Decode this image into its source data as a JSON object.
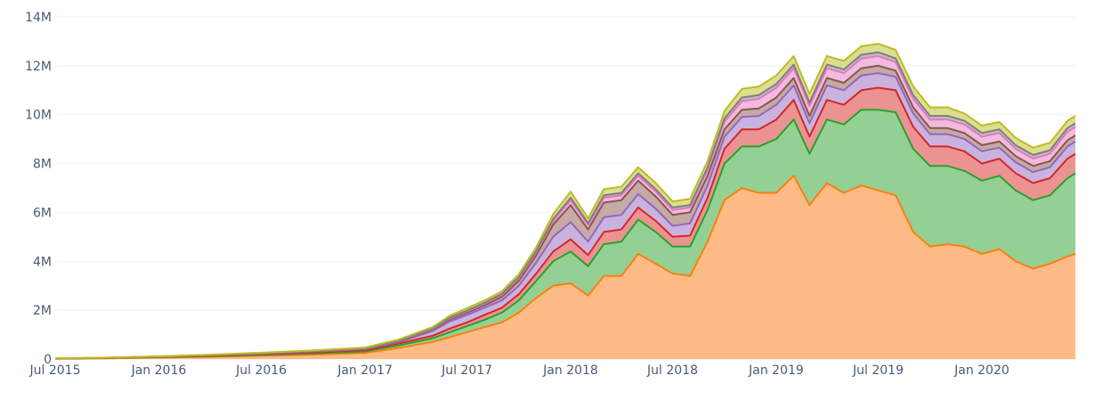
{
  "chart_data": {
    "type": "area",
    "stacked": true,
    "title": "",
    "xlabel": "",
    "ylabel": "",
    "grid": true,
    "legend": "none",
    "ylim": [
      0,
      14400000
    ],
    "xlim": [
      "2015-07-01",
      "2020-06-15"
    ],
    "y_ticks": [
      {
        "value": 0,
        "label": "0"
      },
      {
        "value": 2000000,
        "label": "2M"
      },
      {
        "value": 4000000,
        "label": "4M"
      },
      {
        "value": 6000000,
        "label": "6M"
      },
      {
        "value": 8000000,
        "label": "8M"
      },
      {
        "value": 10000000,
        "label": "10M"
      },
      {
        "value": 12000000,
        "label": "12M"
      },
      {
        "value": 14000000,
        "label": "14M"
      }
    ],
    "x_ticks": [
      {
        "value": "2015-07-01",
        "label": "Jul 2015"
      },
      {
        "value": "2016-01-01",
        "label": "Jan 2016"
      },
      {
        "value": "2016-07-01",
        "label": "Jul 2016"
      },
      {
        "value": "2017-01-01",
        "label": "Jan 2017"
      },
      {
        "value": "2017-07-01",
        "label": "Jul 2017"
      },
      {
        "value": "2018-01-01",
        "label": "Jan 2018"
      },
      {
        "value": "2018-07-01",
        "label": "Jul 2018"
      },
      {
        "value": "2019-01-01",
        "label": "Jan 2019"
      },
      {
        "value": "2019-07-01",
        "label": "Jul 2019"
      },
      {
        "value": "2020-01-01",
        "label": "Jan 2020"
      }
    ],
    "x": [
      "2015-07-01",
      "2015-10-01",
      "2016-01-01",
      "2016-04-01",
      "2016-07-01",
      "2016-10-01",
      "2017-01-01",
      "2017-03-01",
      "2017-05-01",
      "2017-06-01",
      "2017-07-01",
      "2017-08-01",
      "2017-09-01",
      "2017-10-01",
      "2017-11-01",
      "2017-12-01",
      "2018-01-01",
      "2018-02-01",
      "2018-03-01",
      "2018-04-01",
      "2018-05-01",
      "2018-06-01",
      "2018-07-01",
      "2018-08-01",
      "2018-09-01",
      "2018-10-01",
      "2018-11-01",
      "2018-12-01",
      "2019-01-01",
      "2019-02-01",
      "2019-03-01",
      "2019-04-01",
      "2019-05-01",
      "2019-06-01",
      "2019-07-01",
      "2019-08-01",
      "2019-09-01",
      "2019-10-01",
      "2019-11-01",
      "2019-12-01",
      "2020-01-01",
      "2020-02-01",
      "2020-03-01",
      "2020-04-01",
      "2020-05-01",
      "2020-06-01",
      "2020-06-15"
    ],
    "series": [
      {
        "color": "#ff7f0e",
        "fill": "#ffbb85",
        "values": [
          10000,
          30000,
          60000,
          90000,
          130000,
          180000,
          250000,
          450000,
          700000,
          900000,
          1100000,
          1300000,
          1500000,
          1900000,
          2500000,
          3000000,
          3100000,
          2600000,
          3400000,
          3400000,
          4300000,
          3900000,
          3500000,
          3400000,
          4800000,
          6500000,
          7000000,
          6800000,
          6800000,
          7500000,
          6300000,
          7200000,
          6800000,
          7100000,
          6900000,
          6700000,
          5200000,
          4600000,
          4700000,
          4600000,
          4300000,
          4500000,
          4000000,
          3700000,
          3900000,
          4200000,
          4300000
        ]
      },
      {
        "color": "#2ca02c",
        "fill": "#94d094",
        "values": [
          5000,
          10000,
          20000,
          30000,
          40000,
          50000,
          60000,
          100000,
          150000,
          200000,
          250000,
          300000,
          400000,
          500000,
          700000,
          1000000,
          1300000,
          1200000,
          1300000,
          1400000,
          1400000,
          1300000,
          1100000,
          1200000,
          1300000,
          1500000,
          1700000,
          1900000,
          2200000,
          2300000,
          2100000,
          2600000,
          2800000,
          3100000,
          3300000,
          3400000,
          3400000,
          3300000,
          3200000,
          3100000,
          3000000,
          3000000,
          2900000,
          2800000,
          2800000,
          3200000,
          3300000
        ]
      },
      {
        "color": "#d62728",
        "fill": "#eb9393",
        "values": [
          2000,
          5000,
          10000,
          20000,
          30000,
          40000,
          50000,
          80000,
          100000,
          150000,
          150000,
          200000,
          200000,
          250000,
          300000,
          400000,
          500000,
          450000,
          500000,
          500000,
          500000,
          450000,
          400000,
          450000,
          500000,
          600000,
          700000,
          700000,
          800000,
          800000,
          700000,
          800000,
          800000,
          800000,
          900000,
          900000,
          900000,
          800000,
          800000,
          800000,
          700000,
          700000,
          700000,
          700000,
          700000,
          800000,
          800000
        ]
      },
      {
        "color": "#9467bd",
        "fill": "#c9b3de",
        "values": [
          2000,
          5000,
          8000,
          15000,
          20000,
          30000,
          40000,
          60000,
          200000,
          300000,
          300000,
          300000,
          300000,
          350000,
          450000,
          600000,
          700000,
          550000,
          600000,
          600000,
          550000,
          500000,
          450000,
          500000,
          500000,
          500000,
          500000,
          550000,
          600000,
          600000,
          550000,
          600000,
          600000,
          600000,
          600000,
          550000,
          550000,
          500000,
          500000,
          500000,
          500000,
          450000,
          450000,
          450000,
          450000,
          500000,
          500000
        ]
      },
      {
        "color": "#8c564b",
        "fill": "#c5aaa5",
        "values": [
          1000,
          2000,
          3000,
          5000,
          10000,
          15000,
          20000,
          30000,
          50000,
          80000,
          100000,
          100000,
          150000,
          200000,
          300000,
          500000,
          700000,
          500000,
          600000,
          600000,
          550000,
          500000,
          450000,
          450000,
          400000,
          300000,
          300000,
          300000,
          300000,
          300000,
          300000,
          300000,
          300000,
          300000,
          300000,
          250000,
          250000,
          250000,
          250000,
          250000,
          250000,
          250000,
          250000,
          250000,
          250000,
          250000,
          250000
        ]
      },
      {
        "color": "#e377c2",
        "fill": "#f1bbe0",
        "values": [
          1000,
          2000,
          3000,
          5000,
          8000,
          10000,
          15000,
          20000,
          30000,
          40000,
          50000,
          60000,
          80000,
          100000,
          120000,
          150000,
          200000,
          180000,
          200000,
          200000,
          200000,
          200000,
          200000,
          200000,
          250000,
          300000,
          350000,
          400000,
          400000,
          400000,
          400000,
          400000,
          400000,
          400000,
          400000,
          350000,
          350000,
          350000,
          350000,
          350000,
          350000,
          350000,
          300000,
          300000,
          300000,
          350000,
          350000
        ]
      },
      {
        "color": "#7f7f7f",
        "fill": "#bfbfbf",
        "values": [
          1000,
          1000,
          2000,
          3000,
          5000,
          5000,
          10000,
          15000,
          20000,
          30000,
          30000,
          40000,
          40000,
          50000,
          60000,
          80000,
          100000,
          80000,
          100000,
          100000,
          100000,
          100000,
          100000,
          100000,
          100000,
          150000,
          150000,
          150000,
          150000,
          150000,
          150000,
          150000,
          150000,
          150000,
          150000,
          150000,
          150000,
          150000,
          150000,
          150000,
          150000,
          150000,
          150000,
          150000,
          150000,
          150000,
          150000
        ]
      },
      {
        "color": "#bcbd22",
        "fill": "#dddd90",
        "values": [
          2000,
          5000,
          5000,
          10000,
          15000,
          20000,
          25000,
          40000,
          60000,
          80000,
          100000,
          100000,
          100000,
          120000,
          150000,
          200000,
          250000,
          200000,
          250000,
          250000,
          250000,
          250000,
          250000,
          250000,
          250000,
          300000,
          350000,
          350000,
          350000,
          350000,
          350000,
          350000,
          350000,
          350000,
          350000,
          350000,
          350000,
          350000,
          350000,
          300000,
          300000,
          300000,
          300000,
          300000,
          300000,
          300000,
          300000
        ]
      }
    ]
  }
}
